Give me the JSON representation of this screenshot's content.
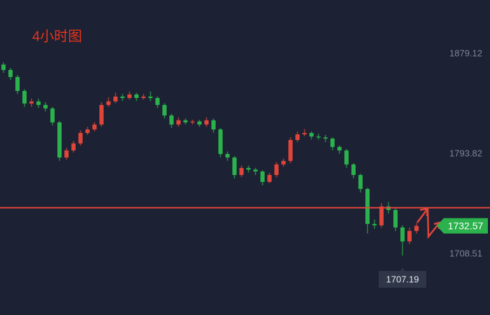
{
  "chart_data": {
    "type": "candlestick",
    "title": "4小时图",
    "ylim": [
      1656.6,
      1925.0
    ],
    "yticks": [
      1708.51,
      1793.82,
      1879.12
    ],
    "up_color": "#e0453a",
    "down_color": "#2bb24c",
    "level_color": "#e0453a",
    "level": 1748,
    "low_price": 1707.19,
    "last_price": 1732.57,
    "open": [
      1870,
      1865.4,
      1859.4,
      1847.5,
      1836.8,
      1838.6,
      1835.6,
      1832.6,
      1820.7,
      1790.8,
      1796.8,
      1802.8,
      1811.7,
      1814.7,
      1818.9,
      1835.6,
      1838.6,
      1842.7,
      1841.5,
      1844.5,
      1841.5,
      1842.7,
      1841.5,
      1835.6,
      1826.6,
      1818.9,
      1822.5,
      1820.7,
      1821.5,
      1818.9,
      1822.5,
      1814.7,
      1793.8,
      1790.8,
      1775.9,
      1781.9,
      1780.5,
      1778.9,
      1770.0,
      1775.9,
      1784.9,
      1787.9,
      1805.7,
      1810.5,
      1811.7,
      1808.7,
      1807.9,
      1806.9,
      1799.8,
      1796.8,
      1784.9,
      1775.9,
      1764.0,
      1734.2,
      1733.0,
      1749.1,
      1746.1,
      1731.2,
      1719.3,
      1728.2
    ],
    "close": [
      1865.4,
      1859.4,
      1847.5,
      1836.8,
      1838.6,
      1835.6,
      1832.6,
      1820.7,
      1790.8,
      1796.8,
      1802.8,
      1811.7,
      1814.7,
      1818.9,
      1835.6,
      1838.6,
      1842.7,
      1841.5,
      1844.5,
      1841.5,
      1842.7,
      1841.5,
      1835.6,
      1826.6,
      1818.9,
      1822.5,
      1820.7,
      1821.5,
      1818.9,
      1822.5,
      1814.7,
      1793.8,
      1790.8,
      1775.9,
      1781.9,
      1780.5,
      1778.9,
      1770.0,
      1775.9,
      1784.9,
      1787.9,
      1805.7,
      1810.5,
      1811.7,
      1808.7,
      1807.9,
      1806.9,
      1799.8,
      1796.8,
      1784.9,
      1775.9,
      1764.0,
      1734.2,
      1733.0,
      1749.1,
      1746.1,
      1731.2,
      1719.3,
      1728.2,
      1732.57
    ],
    "high": [
      1872,
      1867,
      1861,
      1849,
      1841,
      1841,
      1838,
      1834,
      1822,
      1799,
      1805,
      1814,
      1817,
      1821,
      1838,
      1842,
      1846,
      1845,
      1847,
      1846,
      1845,
      1847,
      1843,
      1837,
      1828,
      1825,
      1824,
      1823,
      1823,
      1825,
      1824,
      1816,
      1796,
      1792,
      1784,
      1784,
      1782,
      1780,
      1778,
      1787,
      1790,
      1808,
      1813,
      1815,
      1813,
      1811,
      1810,
      1808,
      1801,
      1798,
      1786,
      1777,
      1765,
      1738,
      1752,
      1753,
      1748,
      1733,
      1731,
      1735
    ],
    "low": [
      1863,
      1857,
      1845,
      1834,
      1834,
      1833,
      1830,
      1818,
      1788,
      1789,
      1795,
      1801,
      1810,
      1813,
      1817,
      1834,
      1837,
      1839,
      1840,
      1839,
      1840,
      1839,
      1833,
      1824,
      1816,
      1817,
      1819,
      1819,
      1817,
      1817,
      1812,
      1791,
      1788,
      1773,
      1774,
      1778,
      1776,
      1767,
      1769,
      1774,
      1783,
      1786,
      1804,
      1809,
      1806,
      1806,
      1804,
      1797,
      1794,
      1782,
      1773,
      1761,
      1726,
      1730,
      1731,
      1743,
      1728,
      1707.19,
      1717,
      1726
    ]
  }
}
